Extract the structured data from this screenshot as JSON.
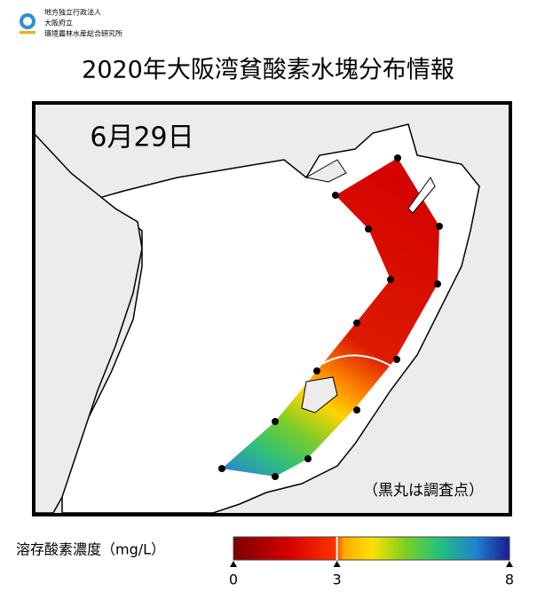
{
  "header": {
    "org": [
      "地方独立行政法人",
      "大阪府立",
      "環境農林水産総合研究所"
    ],
    "title": "2020年大阪湾貧酸素水塊分布情報"
  },
  "map": {
    "date": "6月29日",
    "note": "（黒丸は調査点）"
  },
  "legend": {
    "label": "溶存酸素濃度（mg/L）",
    "range": [
      0,
      8
    ],
    "ticks": [
      0,
      3,
      8
    ]
  }
}
